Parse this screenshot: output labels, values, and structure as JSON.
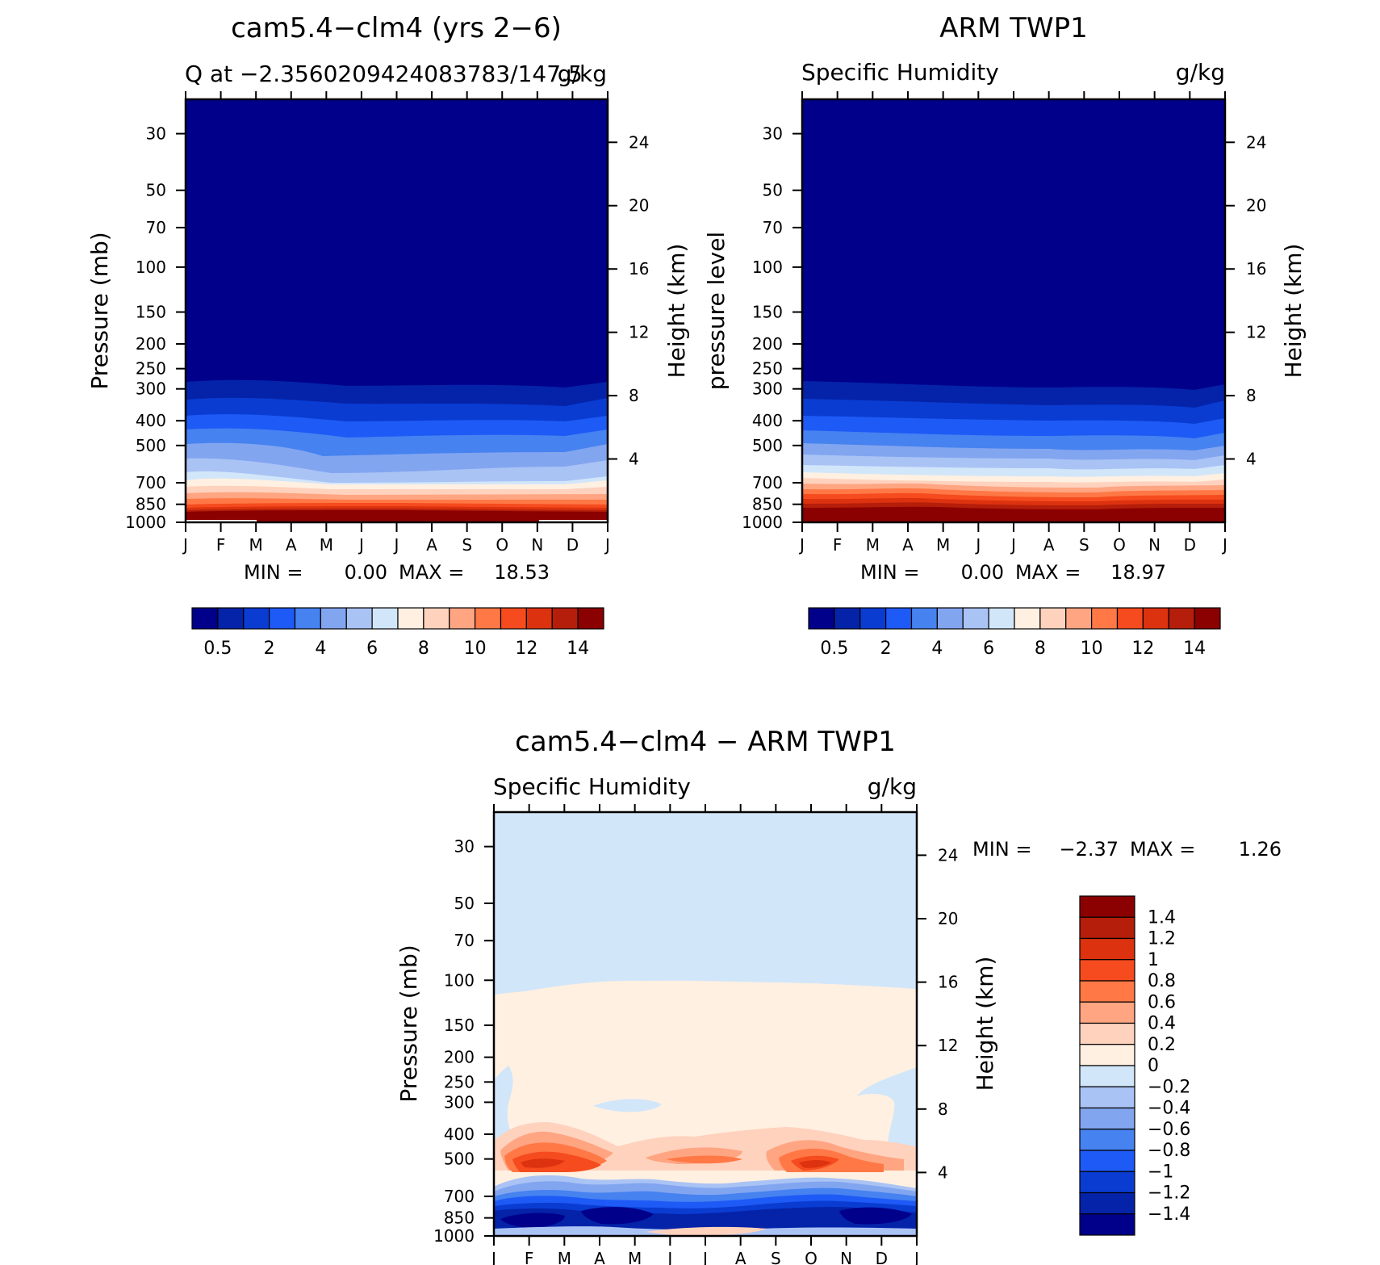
{
  "page_bg": "#ffffff",
  "colors": {
    "model_obs_scale": [
      "#00008b",
      "#0523a8",
      "#0a3cd2",
      "#1e5af5",
      "#4682f0",
      "#82a5f0",
      "#aac3f5",
      "#d2e6fa",
      "#fff0e1",
      "#ffd2be",
      "#ffa582",
      "#ff7846",
      "#f54b1e",
      "#dc320f",
      "#b41e0a",
      "#8b0000"
    ],
    "diff_scale": [
      "#00008b",
      "#0523a8",
      "#0a3cd2",
      "#1e5af5",
      "#4682f0",
      "#82a5f0",
      "#aac3f5",
      "#d2e6fa",
      "#fff0e1",
      "#ffd2be",
      "#ffa582",
      "#ff7846",
      "#f54b1e",
      "#dc320f",
      "#b41e0a",
      "#8b0000"
    ]
  },
  "chart_data": [
    {
      "id": "model",
      "type": "heatmap",
      "title": "cam5.4−clm4 (yrs 2−6)",
      "subtitle_left": "Q at −2.3560209424083783/147.5",
      "subtitle_right": "g/kg",
      "ylabel": "Pressure (mb)",
      "ylabel_right": "Height (km)",
      "x_ticks": [
        "J",
        "F",
        "M",
        "A",
        "M",
        "J",
        "J",
        "A",
        "S",
        "O",
        "N",
        "D",
        "J"
      ],
      "y_ticks": [
        30,
        50,
        70,
        100,
        150,
        200,
        250,
        300,
        400,
        500,
        700,
        850,
        1000
      ],
      "ylim": [
        1000,
        22
      ],
      "y_scale": "log",
      "height_ticks": [
        24,
        20,
        16,
        12,
        8,
        4
      ],
      "stats": {
        "min_label": "MIN =",
        "min": "0.00",
        "max_label": "MAX =",
        "max": "18.53"
      },
      "colorbar": {
        "orientation": "horizontal",
        "tick_labels": [
          "0.5",
          "2",
          "4",
          "6",
          "8",
          "10",
          "12",
          "14"
        ],
        "levels": [
          0.5,
          1,
          2,
          3,
          4,
          5,
          6,
          7,
          8,
          9,
          10,
          11,
          12,
          13,
          14
        ]
      },
      "field_q_gkg_by_pressure": {
        "pressure_mb": [
          1000,
          850,
          700,
          500,
          400,
          300,
          250
        ],
        "monthly_mean": [
          18.5,
          13.0,
          8.0,
          4.5,
          2.2,
          0.5,
          0.2
        ]
      }
    },
    {
      "id": "obs",
      "type": "heatmap",
      "title": "ARM TWP1",
      "subtitle_left": "Specific Humidity",
      "subtitle_right": "g/kg",
      "ylabel": "pressure level",
      "ylabel_right": "Height (km)",
      "x_ticks": [
        "J",
        "F",
        "M",
        "A",
        "M",
        "J",
        "J",
        "A",
        "S",
        "O",
        "N",
        "D",
        "J"
      ],
      "y_ticks": [
        30,
        50,
        70,
        100,
        150,
        200,
        250,
        300,
        400,
        500,
        700,
        850,
        1000
      ],
      "ylim": [
        1000,
        22
      ],
      "y_scale": "log",
      "height_ticks": [
        24,
        20,
        16,
        12,
        8,
        4
      ],
      "stats": {
        "min_label": "MIN =",
        "min": "0.00",
        "max_label": "MAX =",
        "max": "18.97"
      },
      "colorbar": {
        "orientation": "horizontal",
        "tick_labels": [
          "0.5",
          "2",
          "4",
          "6",
          "8",
          "10",
          "12",
          "14"
        ],
        "levels": [
          0.5,
          1,
          2,
          3,
          4,
          5,
          6,
          7,
          8,
          9,
          10,
          11,
          12,
          13,
          14
        ]
      },
      "field_q_gkg_by_pressure": {
        "pressure_mb": [
          1000,
          850,
          700,
          500,
          400,
          300,
          250
        ],
        "monthly_mean": [
          19.0,
          13.5,
          8.5,
          4.0,
          2.0,
          0.5,
          0.2
        ]
      }
    },
    {
      "id": "diff",
      "type": "heatmap",
      "title": "cam5.4−clm4 − ARM TWP1",
      "subtitle_left": "Specific Humidity",
      "subtitle_right": "g/kg",
      "ylabel": "Pressure (mb)",
      "ylabel_right": "Height (km)",
      "x_ticks": [
        "J",
        "F",
        "M",
        "A",
        "M",
        "J",
        "J",
        "A",
        "S",
        "O",
        "N",
        "D",
        "J"
      ],
      "y_ticks": [
        30,
        50,
        70,
        100,
        150,
        200,
        250,
        300,
        400,
        500,
        700,
        850,
        1000
      ],
      "ylim": [
        1000,
        22
      ],
      "y_scale": "log",
      "height_ticks": [
        24,
        20,
        16,
        12,
        8,
        4
      ],
      "stats": {
        "min_label": "MIN =",
        "min": "−2.37",
        "max_label": "MAX =",
        "max": "1.26"
      },
      "colorbar": {
        "orientation": "vertical",
        "tick_labels": [
          "1.4",
          "1.2",
          "1",
          "0.8",
          "0.6",
          "0.4",
          "0.2",
          "0",
          "−0.2",
          "−0.4",
          "−0.6",
          "−0.8",
          "−1",
          "−1.2",
          "−1.4"
        ],
        "levels": [
          -1.4,
          -1.2,
          -1,
          -0.8,
          -0.6,
          -0.4,
          -0.2,
          0,
          0.2,
          0.4,
          0.6,
          0.8,
          1,
          1.2,
          1.4
        ]
      }
    }
  ]
}
